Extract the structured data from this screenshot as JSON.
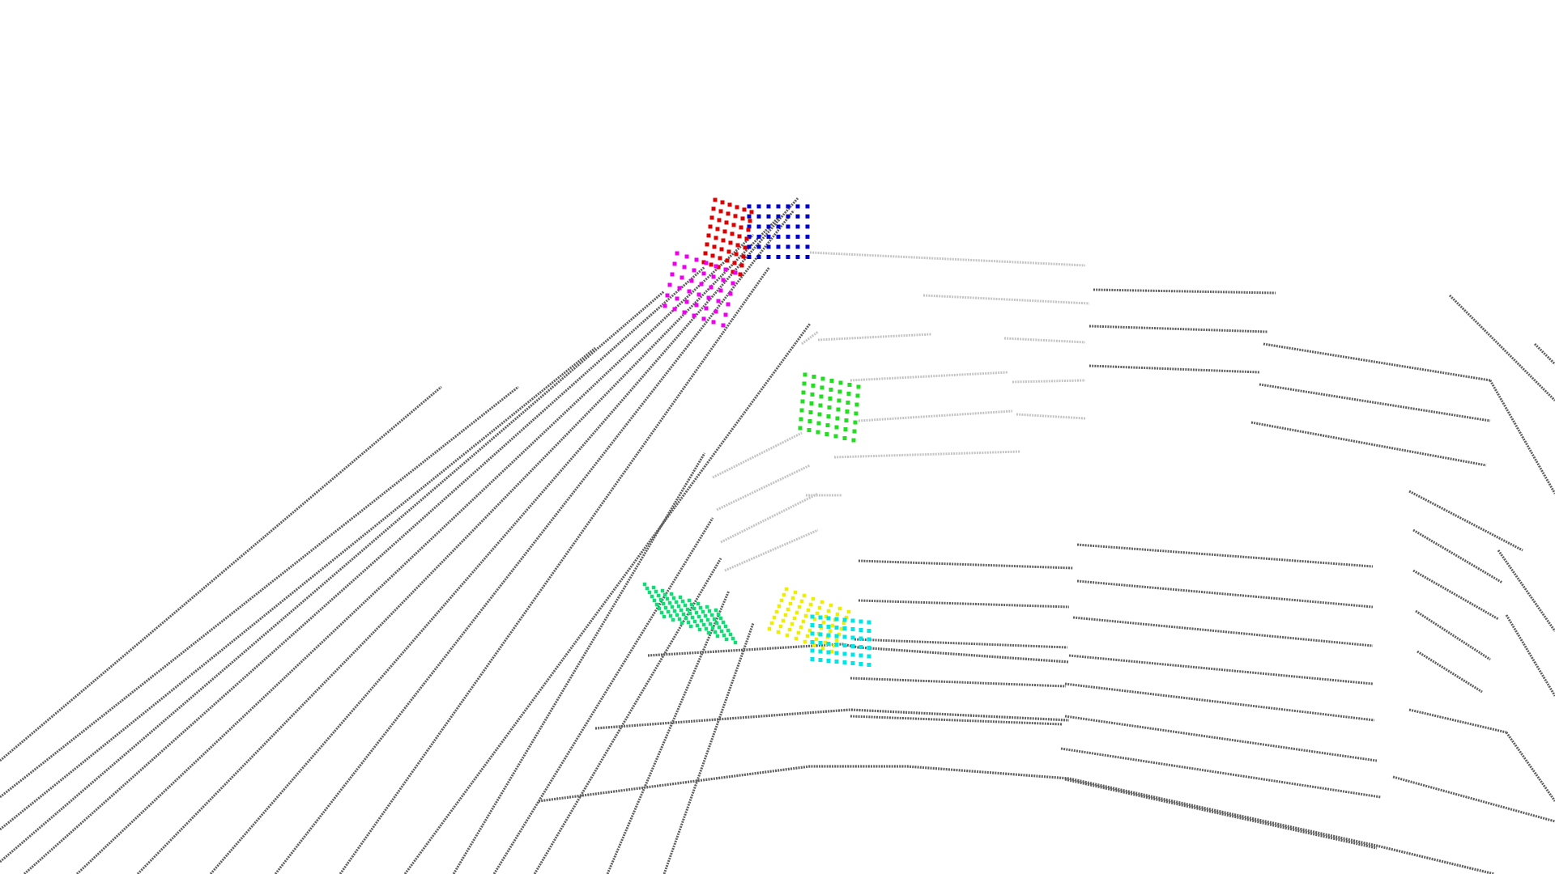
{
  "scene": {
    "background": "#ffffff",
    "scan_color_dark": "#5f5f5f",
    "scan_color_light": "#c4c4c4"
  },
  "highlight_clusters": [
    {
      "id": "red-cluster",
      "color": "#dd0000"
    },
    {
      "id": "blue-cluster",
      "color": "#0000cc"
    },
    {
      "id": "magenta-cluster",
      "color": "#ee00ee"
    },
    {
      "id": "green-cluster",
      "color": "#22dd22"
    },
    {
      "id": "mint-cluster",
      "color": "#11dd77"
    },
    {
      "id": "yellow-cluster",
      "color": "#eeee00"
    },
    {
      "id": "cyan-cluster",
      "color": "#00e5e5"
    }
  ]
}
